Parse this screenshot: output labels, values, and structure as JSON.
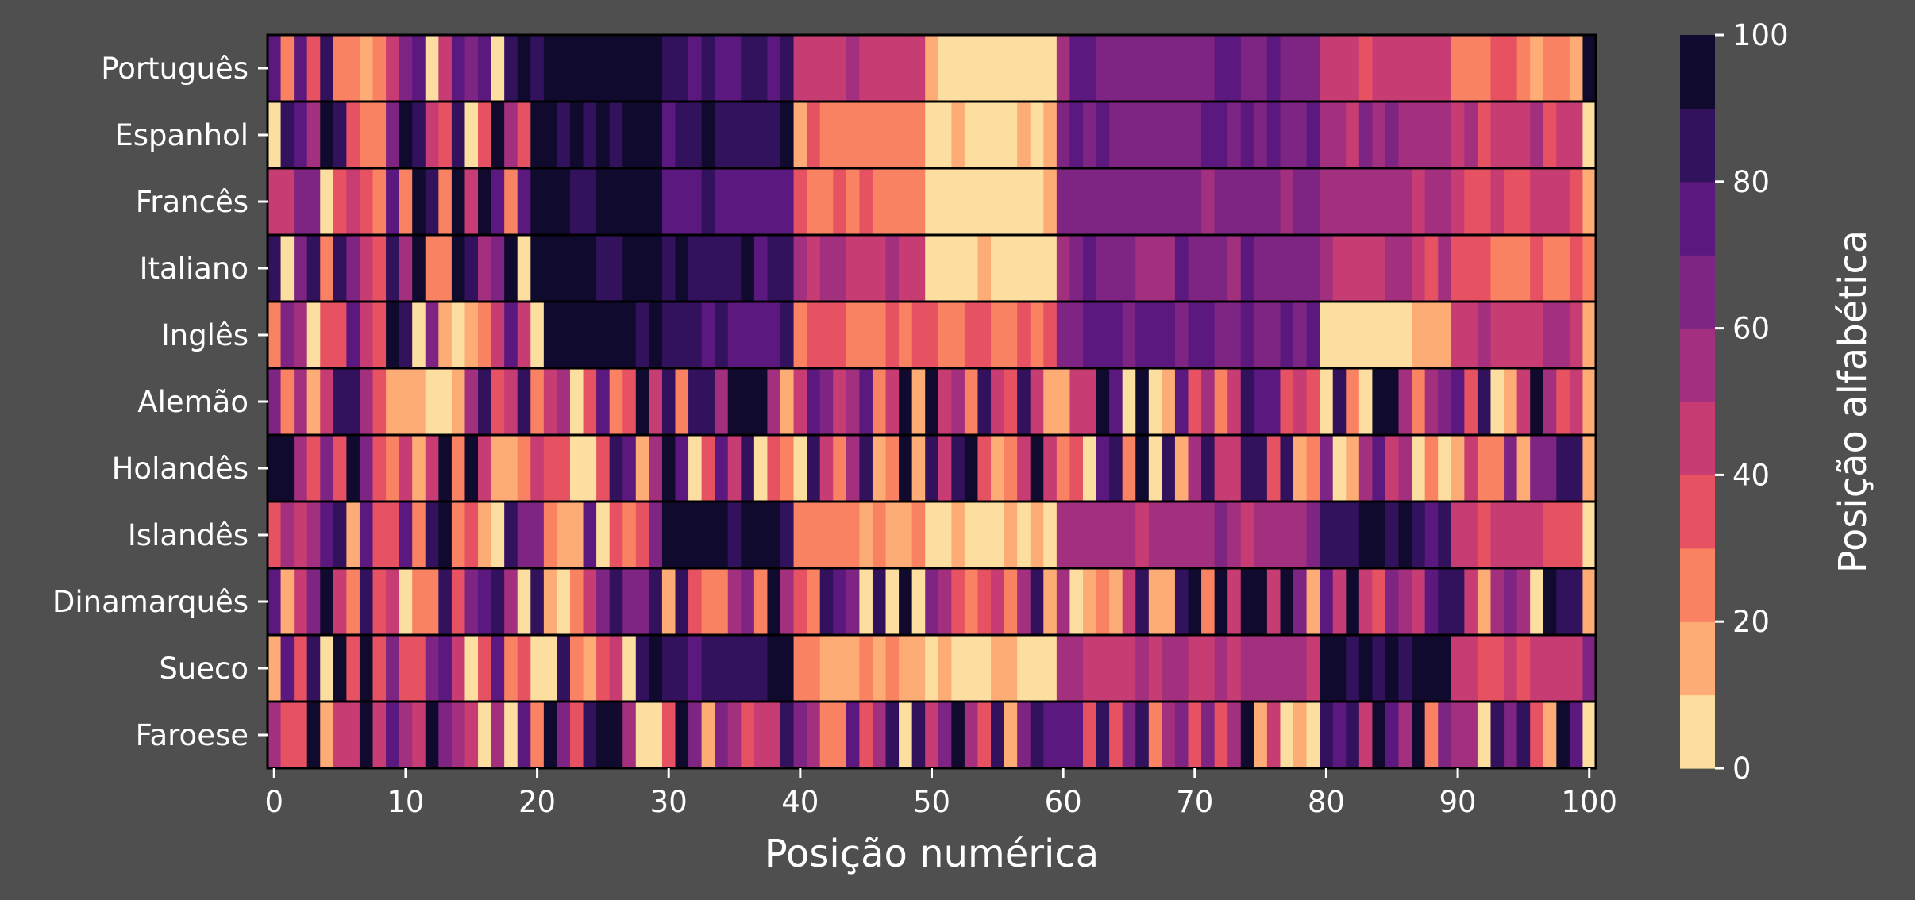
{
  "chart_data": {
    "type": "heatmap",
    "title": "",
    "xlabel": "Posição numérica",
    "ylabel": "",
    "colorbar_label": "Posição alfabética",
    "xlim": [
      0,
      100
    ],
    "x_ticks": [
      0,
      10,
      20,
      30,
      40,
      50,
      60,
      70,
      80,
      90,
      100
    ],
    "colorbar_ticks": [
      0,
      20,
      40,
      60,
      80,
      100
    ],
    "colorbar_range": [
      0,
      100
    ],
    "colorbar_levels": 10,
    "colormap": [
      "#fcdfa0",
      "#feac75",
      "#f98262",
      "#e75263",
      "#c73d73",
      "#a3307e",
      "#7e2482",
      "#5b187f",
      "#32115d",
      "#100b2e"
    ],
    "grid": false,
    "row_separators": true,
    "rows": [
      {
        "label": "Português"
      },
      {
        "label": "Espanhol"
      },
      {
        "label": "Francês"
      },
      {
        "label": "Italiano"
      },
      {
        "label": "Inglês"
      },
      {
        "label": "Alemão"
      },
      {
        "label": "Holandês"
      },
      {
        "label": "Islandês"
      },
      {
        "label": "Dinamarquês"
      },
      {
        "label": "Sueco"
      },
      {
        "label": "Faroese"
      }
    ]
  }
}
